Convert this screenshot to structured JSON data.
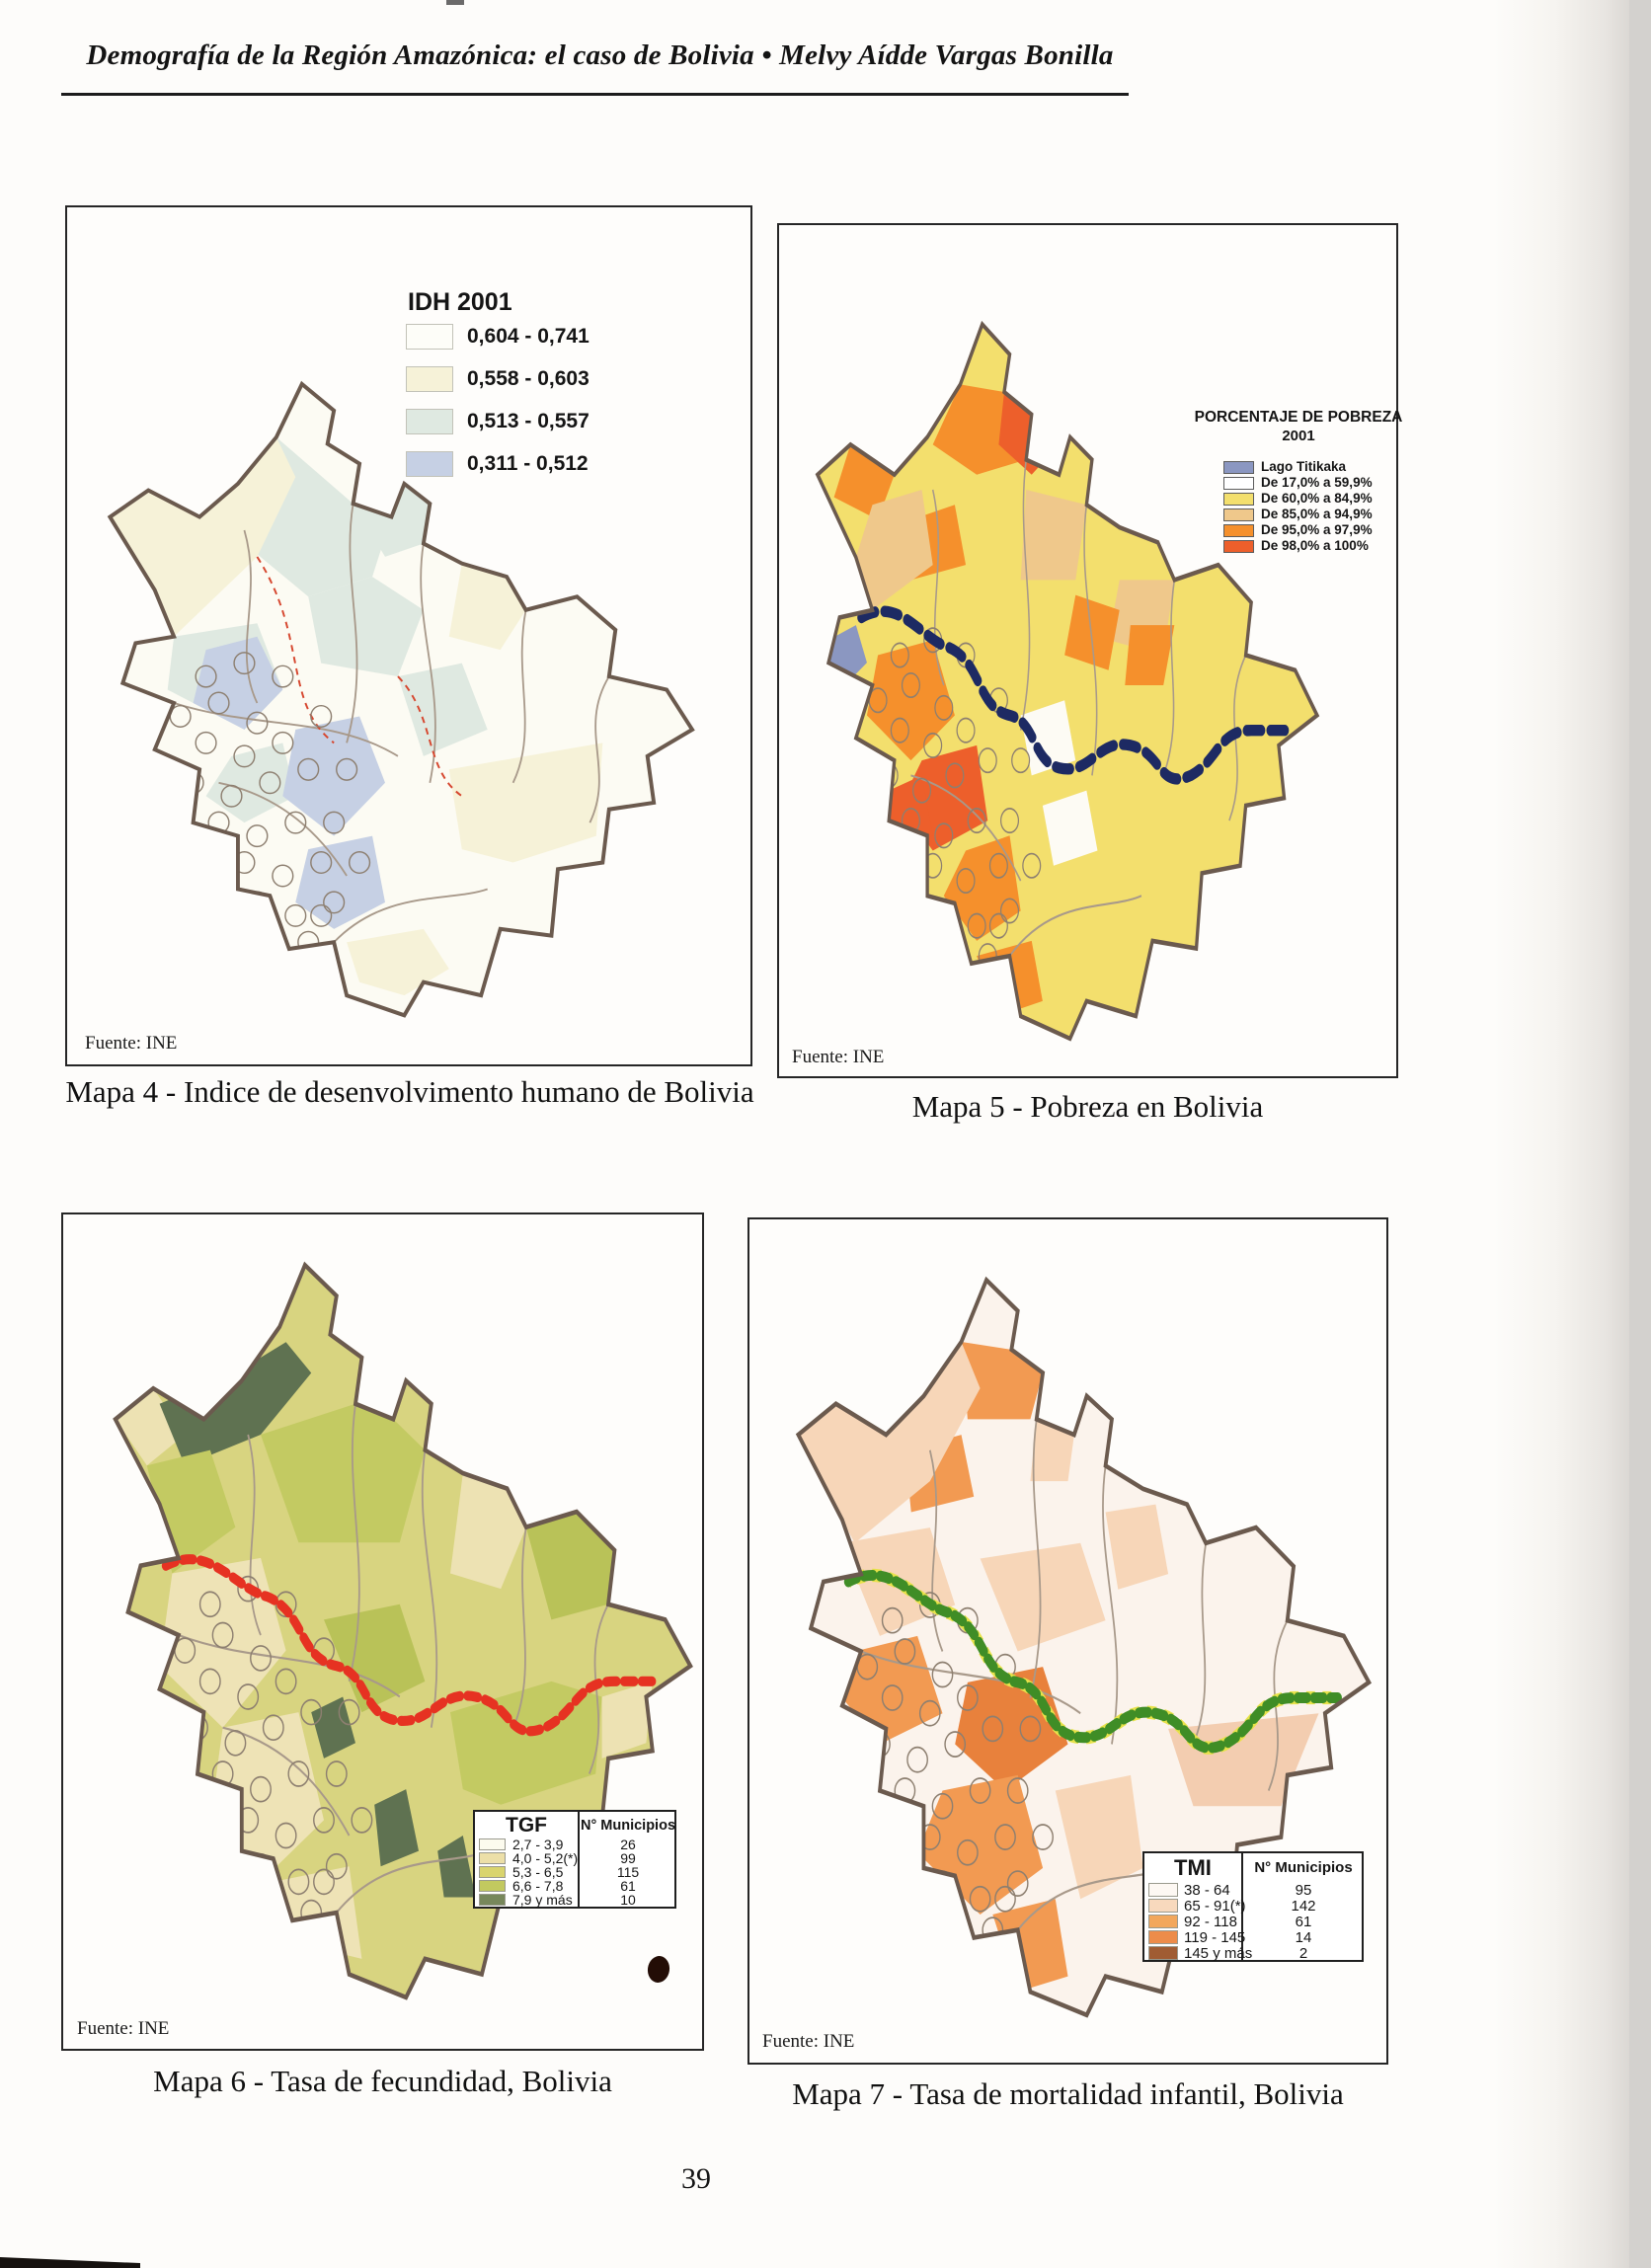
{
  "page": {
    "header": "Demografía de la Región Amazónica: el caso de Bolivia • Melvy Aídde Vargas Bonilla",
    "page_number": "39"
  },
  "mapa4": {
    "legend_title": "IDH 2001",
    "legend": [
      {
        "label": "0,604 - 0,741",
        "color": "#fdfdf8"
      },
      {
        "label": "0,558 - 0,603",
        "color": "#f6f2d8"
      },
      {
        "label": "0,513 - 0,557",
        "color": "#dfe9e1"
      },
      {
        "label": "0,311 - 0,512",
        "color": "#c6d0e4"
      }
    ],
    "fuente": "Fuente: INE",
    "caption": "Mapa 4 -  Indice de desenvolvimento humano de Bolivia"
  },
  "mapa5": {
    "legend_title": "PORCENTAJE DE POBREZA",
    "legend_year": "2001",
    "legend": [
      {
        "label": "Lago Titikaka",
        "color": "#8b97c1"
      },
      {
        "label": "De 17,0% a 59,9%",
        "color": "#ffffff"
      },
      {
        "label": "De 60,0% a 84,9%",
        "color": "#f3df6d"
      },
      {
        "label": "De 85,0% a 94,9%",
        "color": "#efc88b"
      },
      {
        "label": "De 95,0% a 97,9%",
        "color": "#f5902c"
      },
      {
        "label": "De 98,0% a 100%",
        "color": "#ed5f2b"
      }
    ],
    "fuente": "Fuente: INE",
    "caption": "Mapa 5 - Pobreza en Bolivia"
  },
  "mapa6": {
    "legend_col1": "TGF",
    "legend_col2": "N° Municipios",
    "legend": [
      {
        "label": "2,7 - 3,9",
        "count": "26",
        "color": "#fcfbee"
      },
      {
        "label": "4,0 - 5,2(*)",
        "count": "99",
        "color": "#ecdfa8"
      },
      {
        "label": "5,3 - 6,5",
        "count": "115",
        "color": "#d9d46e"
      },
      {
        "label": "6,6 - 7,8",
        "count": "61",
        "color": "#c2c95f"
      },
      {
        "label": "7,9 y más",
        "count": "10",
        "color": "#77875b"
      }
    ],
    "fuente": "Fuente: INE",
    "caption": "Mapa 6 - Tasa de fecundidad, Bolivia"
  },
  "mapa7": {
    "legend_col1": "TMI",
    "legend_col2": "N° Municipios",
    "legend": [
      {
        "label": "38 - 64",
        "count": "95",
        "color": "#fdf8f3"
      },
      {
        "label": "65 - 91(*)",
        "count": "142",
        "color": "#f8d9bd"
      },
      {
        "label": "92 - 118",
        "count": "61",
        "color": "#f2a75c"
      },
      {
        "label": "119 - 145",
        "count": "14",
        "color": "#ed8c4a"
      },
      {
        "label": "145 y más",
        "count": "2",
        "color": "#a05c33"
      }
    ],
    "fuente": "Fuente: INE",
    "caption": "Mapa 7 - Tasa de mortalidad infantil, Bolivia"
  }
}
